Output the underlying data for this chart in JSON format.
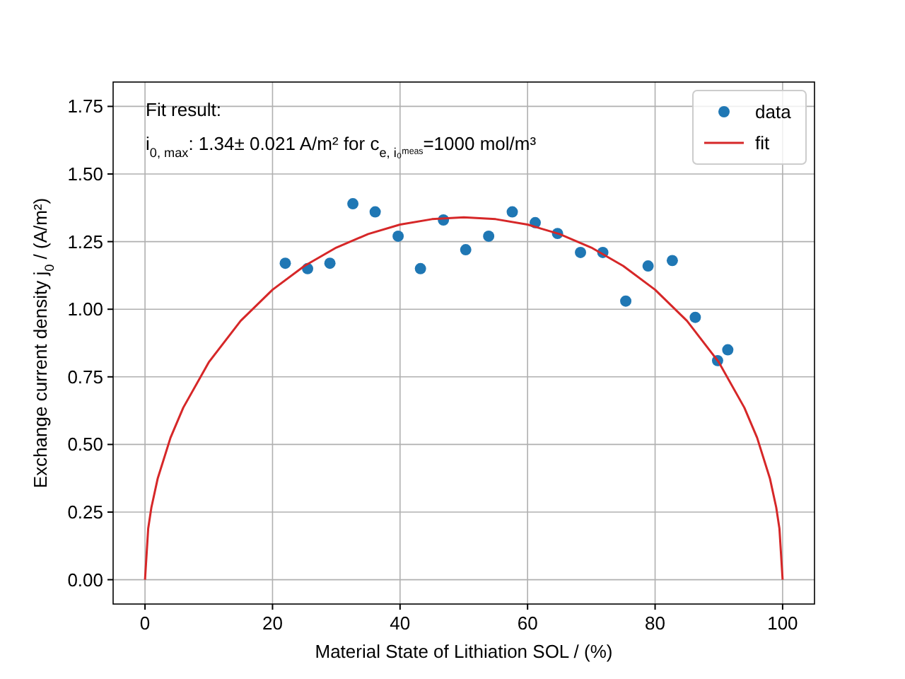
{
  "chart_data": {
    "type": "scatter",
    "xlabel": "Material State of Lithiation SOL / (%)",
    "ylabel": "Exchange current density j$_{0}$ / (A/m²)",
    "annotations": [
      "Fit result:",
      "i$_{0, max}$: 1.34± 0.021 A/m² for c$_{e, i₀ᵐᵉᵃˢ}$=1000 mol/m³"
    ],
    "xlim": [
      -5,
      105
    ],
    "xticks": [
      0,
      20,
      40,
      60,
      80,
      100
    ],
    "ylim": [
      -0.09,
      1.84
    ],
    "yticks": [
      {
        "value": 0,
        "label": "0.00"
      },
      {
        "value": 0.25,
        "label": "0.25"
      },
      {
        "value": 0.5,
        "label": "0.50"
      },
      {
        "value": 0.75,
        "label": "0.75"
      },
      {
        "value": 1,
        "label": "1.00"
      },
      {
        "value": 1.25,
        "label": "1.25"
      },
      {
        "value": 1.5,
        "label": "1.50"
      },
      {
        "value": 1.75,
        "label": "1.75"
      }
    ],
    "grid": true,
    "legend": "top right",
    "series": [
      {
        "name": "data",
        "marker": "circle",
        "color": "#1f77b4",
        "x": [
          22.0,
          25.5,
          29.0,
          32.6,
          36.1,
          39.7,
          43.2,
          46.8,
          50.3,
          53.9,
          57.6,
          61.2,
          64.7,
          68.3,
          71.8,
          75.4,
          78.9,
          82.7,
          86.3,
          89.8,
          91.4
        ],
        "values": [
          1.17,
          1.15,
          1.17,
          1.39,
          1.36,
          1.27,
          1.15,
          1.33,
          1.22,
          1.27,
          1.36,
          1.32,
          1.28,
          1.21,
          1.21,
          1.03,
          1.16,
          1.18,
          0.97,
          0.81,
          0.85
        ]
      },
      {
        "name": "fit",
        "type": "line",
        "marker": "none",
        "color": "#d62728",
        "x": [
          0,
          0.5,
          1,
          2,
          4,
          6,
          10,
          15,
          20,
          25,
          30,
          35,
          40,
          45,
          50,
          55,
          60,
          65,
          70,
          75,
          80,
          85,
          90,
          94,
          96,
          98,
          99,
          99.5,
          100
        ],
        "values": [
          0,
          0.189,
          0.267,
          0.375,
          0.525,
          0.636,
          0.804,
          0.957,
          1.072,
          1.16,
          1.228,
          1.278,
          1.313,
          1.333,
          1.34,
          1.333,
          1.313,
          1.278,
          1.228,
          1.16,
          1.072,
          0.957,
          0.804,
          0.636,
          0.525,
          0.375,
          0.267,
          0.189,
          0
        ]
      }
    ]
  }
}
